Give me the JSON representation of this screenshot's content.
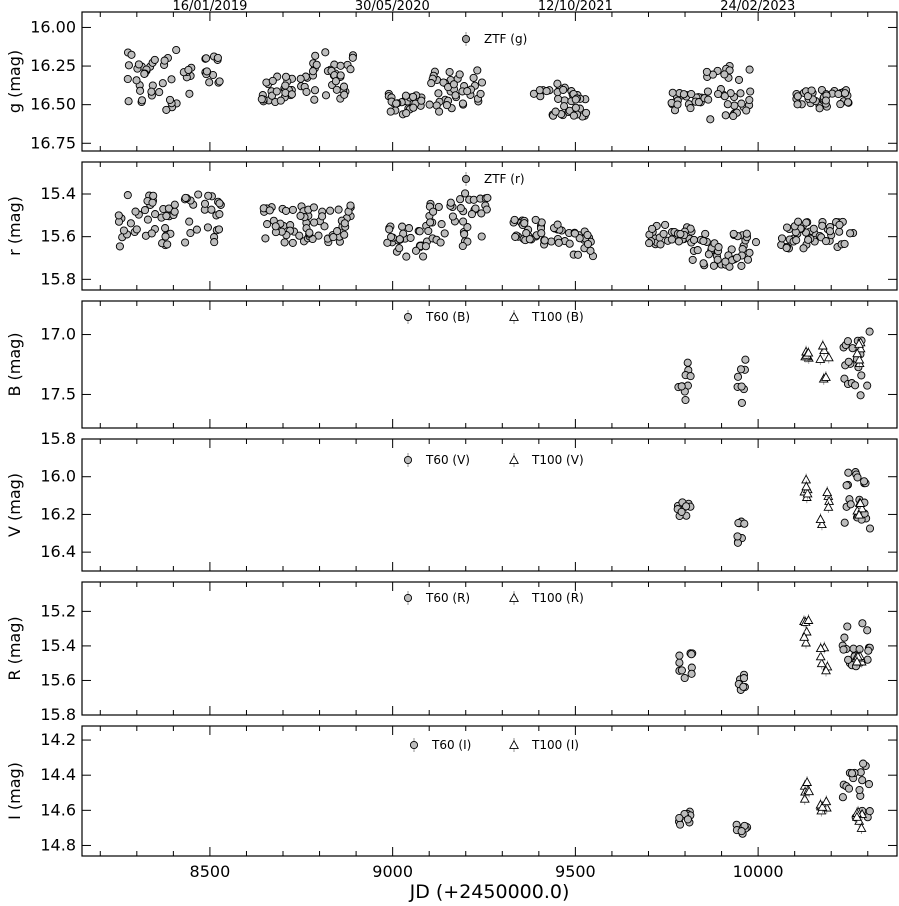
{
  "chart_data": {
    "type": "scatter",
    "xlabel": "JD (+2450000.0)",
    "x_ticks": [
      8500,
      9000,
      9500,
      10000
    ],
    "xlim": [
      8150,
      10380
    ],
    "top_axis": {
      "ticks": [
        {
          "jd": 8500,
          "label": "16/01/2019"
        },
        {
          "jd": 8999,
          "label": "30/05/2020"
        },
        {
          "jd": 9500,
          "label": "12/10/2021"
        },
        {
          "jd": 9999,
          "label": "24/02/2023"
        }
      ]
    },
    "panels": [
      {
        "id": "g",
        "ylabel": "g (mag)",
        "ylim": [
          15.9,
          16.8
        ],
        "inverted": true,
        "y_ticks": [
          "16.00",
          "16.25",
          "16.50",
          "16.75"
        ],
        "legend": [
          {
            "label": "ZTF (g)",
            "marker": "circle-dark"
          }
        ],
        "series": [
          {
            "name": "ZTF (g)",
            "marker": "circle",
            "color": "#bdbdbd",
            "edge": "#000000",
            "segments": [
              {
                "x": [
                  8270,
                  8410
                ],
                "y": [
                  16.05,
                  16.62
                ]
              },
              {
                "x": [
                  8420,
                  8450
                ],
                "y": [
                  16.22,
                  16.45
                ]
              },
              {
                "x": [
                  8480,
                  8530
                ],
                "y": [
                  16.12,
                  16.42
                ]
              },
              {
                "x": [
                  8640,
                  8770
                ],
                "y": [
                  16.28,
                  16.52
                ]
              },
              {
                "x": [
                  8770,
                  8800
                ],
                "y": [
                  16.08,
                  16.55
                ]
              },
              {
                "x": [
                  8800,
                  8900
                ],
                "y": [
                  16.1,
                  16.5
                ]
              },
              {
                "x": [
                  8980,
                  9090
                ],
                "y": [
                  16.4,
                  16.6
                ]
              },
              {
                "x": [
                  9090,
                  9250
                ],
                "y": [
                  16.22,
                  16.56
                ]
              },
              {
                "x": [
                  9380,
                  9530
                ],
                "y": [
                  16.3,
                  16.63
                ]
              },
              {
                "x": [
                  9760,
                  9850
                ],
                "y": [
                  16.4,
                  16.55
                ]
              },
              {
                "x": [
                  9850,
                  9990
                ],
                "y": [
                  16.15,
                  16.68
                ]
              },
              {
                "x": [
                  10100,
                  10250
                ],
                "y": [
                  16.38,
                  16.54
                ]
              }
            ]
          }
        ]
      },
      {
        "id": "r",
        "ylabel": "r (mag)",
        "ylim": [
          15.25,
          15.85
        ],
        "inverted": true,
        "y_ticks": [
          "15.4",
          "15.6",
          "15.8"
        ],
        "legend": [
          {
            "label": "ZTF (r)",
            "marker": "circle-dark"
          }
        ],
        "series": [
          {
            "name": "ZTF (r)",
            "marker": "circle",
            "color": "#bdbdbd",
            "edge": "#000000",
            "segments": [
              {
                "x": [
                  8250,
                  8410
                ],
                "y": [
                  15.35,
                  15.71
                ]
              },
              {
                "x": [
                  8430,
                  8530
                ],
                "y": [
                  15.35,
                  15.68
                ]
              },
              {
                "x": [
                  8640,
                  8770
                ],
                "y": [
                  15.42,
                  15.67
                ]
              },
              {
                "x": [
                  8770,
                  8890
                ],
                "y": [
                  15.4,
                  15.7
                ]
              },
              {
                "x": [
                  8980,
                  9100
                ],
                "y": [
                  15.52,
                  15.7
                ]
              },
              {
                "x": [
                  9100,
                  9260
                ],
                "y": [
                  15.34,
                  15.68
                ]
              },
              {
                "x": [
                  9330,
                  9480
                ],
                "y": [
                  15.49,
                  15.65
                ]
              },
              {
                "x": [
                  9480,
                  9550
                ],
                "y": [
                  15.55,
                  15.72
                ]
              },
              {
                "x": [
                  9700,
                  9820
                ],
                "y": [
                  15.52,
                  15.66
                ]
              },
              {
                "x": [
                  9820,
                  10000
                ],
                "y": [
                  15.55,
                  15.77
                ]
              },
              {
                "x": [
                  10060,
                  10100
                ],
                "y": [
                  15.52,
                  15.68
                ]
              },
              {
                "x": [
                  10100,
                  10260
                ],
                "y": [
                  15.5,
                  15.66
                ]
              }
            ]
          }
        ]
      },
      {
        "id": "B",
        "ylabel": "B (mag)",
        "ylim": [
          16.72,
          17.78
        ],
        "inverted": true,
        "y_ticks": [
          "17.0",
          "17.5"
        ],
        "legend": [
          {
            "label": "T60 (B)",
            "marker": "circle"
          },
          {
            "label": "T100 (B)",
            "marker": "triangle"
          }
        ],
        "series": [
          {
            "name": "T60 (B)",
            "marker": "circle",
            "color": "#bdbdbd",
            "edge": "#000000",
            "segments": [
              {
                "x": [
                  9780,
                  9820
                ],
                "y": [
                  17.08,
                  17.66
                ]
              },
              {
                "x": [
                  9940,
                  9970
                ],
                "y": [
                  17.1,
                  17.7
                ]
              },
              {
                "x": [
                  10230,
                  10310
                ],
                "y": [
                  16.85,
                  17.56
                ]
              }
            ]
          },
          {
            "name": "T100 (B)",
            "marker": "triangle",
            "color": "#ffffff",
            "edge": "#000000",
            "segments": [
              {
                "x": [
                  10125,
                  10140
                ],
                "y": [
                  17.1,
                  17.22
                ]
              },
              {
                "x": [
                  10170,
                  10195
                ],
                "y": [
                  17.0,
                  17.48
                ]
              },
              {
                "x": [
                  10270,
                  10285
                ],
                "y": [
                  17.02,
                  17.26
                ]
              }
            ]
          }
        ]
      },
      {
        "id": "V",
        "ylabel": "V (mag)",
        "ylim": [
          15.8,
          16.5
        ],
        "inverted": true,
        "y_ticks": [
          "15.8",
          "16.0",
          "16.2",
          "16.4"
        ],
        "legend": [
          {
            "label": "T60 (V)",
            "marker": "circle"
          },
          {
            "label": "T100 (V)",
            "marker": "triangle"
          }
        ],
        "series": [
          {
            "name": "T60 (V)",
            "marker": "circle",
            "color": "#bdbdbd",
            "edge": "#000000",
            "segments": [
              {
                "x": [
                  9780,
                  9820
                ],
                "y": [
                  16.11,
                  16.27
                ]
              },
              {
                "x": [
                  9940,
                  9970
                ],
                "y": [
                  16.21,
                  16.39
                ]
              },
              {
                "x": [
                  10230,
                  10310
                ],
                "y": [
                  15.91,
                  16.33
                ]
              }
            ]
          },
          {
            "name": "T100 (V)",
            "marker": "triangle",
            "color": "#ffffff",
            "edge": "#000000",
            "segments": [
              {
                "x": [
                  10125,
                  10140
                ],
                "y": [
                  15.9,
                  16.15
                ]
              },
              {
                "x": [
                  10170,
                  10195
                ],
                "y": [
                  16.04,
                  16.3
                ]
              },
              {
                "x": [
                  10270,
                  10285
                ],
                "y": [
                  16.1,
                  16.25
                ]
              }
            ]
          }
        ]
      },
      {
        "id": "R",
        "ylabel": "R (mag)",
        "ylim": [
          15.03,
          15.8
        ],
        "inverted": true,
        "y_ticks": [
          "15.2",
          "15.4",
          "15.6",
          "15.8"
        ],
        "legend": [
          {
            "label": "T60 (R)",
            "marker": "circle"
          },
          {
            "label": "T100 (R)",
            "marker": "triangle"
          }
        ],
        "series": [
          {
            "name": "T60 (R)",
            "marker": "circle",
            "color": "#bdbdbd",
            "edge": "#000000",
            "segments": [
              {
                "x": [
                  9780,
                  9820
                ],
                "y": [
                  15.4,
                  15.62
                ]
              },
              {
                "x": [
                  9940,
                  9970
                ],
                "y": [
                  15.51,
                  15.69
                ]
              },
              {
                "x": [
                  10230,
                  10310
                ],
                "y": [
                  15.2,
                  15.58
                ]
              }
            ]
          },
          {
            "name": "T100 (R)",
            "marker": "triangle",
            "color": "#ffffff",
            "edge": "#000000",
            "segments": [
              {
                "x": [
                  10125,
                  10140
                ],
                "y": [
                  15.13,
                  15.45
                ]
              },
              {
                "x": [
                  10170,
                  10195
                ],
                "y": [
                  15.37,
                  15.55
                ]
              },
              {
                "x": [
                  10270,
                  10285
                ],
                "y": [
                  15.44,
                  15.52
                ]
              }
            ]
          }
        ]
      },
      {
        "id": "I",
        "ylabel": "I (mag)",
        "ylim": [
          14.12,
          14.86
        ],
        "inverted": true,
        "y_ticks": [
          "14.2",
          "14.4",
          "14.6",
          "14.8"
        ],
        "legend": [
          {
            "label": "T60 (I)",
            "marker": "circle"
          },
          {
            "label": "T100 (I)",
            "marker": "triangle"
          }
        ],
        "series": [
          {
            "name": "T60 (I)",
            "marker": "circle",
            "color": "#bdbdbd",
            "edge": "#000000",
            "segments": [
              {
                "x": [
                  9780,
                  9820
                ],
                "y": [
                  14.58,
                  14.7
                ]
              },
              {
                "x": [
                  9940,
                  9970
                ],
                "y": [
                  14.66,
                  14.75
                ]
              },
              {
                "x": [
                  10230,
                  10310
                ],
                "y": [
                  14.24,
                  14.72
                ]
              }
            ]
          },
          {
            "name": "T100 (I)",
            "marker": "triangle",
            "color": "#ffffff",
            "edge": "#000000",
            "segments": [
              {
                "x": [
                  10125,
                  10140
                ],
                "y": [
                  14.36,
                  14.6
                ]
              },
              {
                "x": [
                  10170,
                  10195
                ],
                "y": [
                  14.52,
                  14.65
                ]
              },
              {
                "x": [
                  10270,
                  10285
                ],
                "y": [
                  14.58,
                  14.72
                ]
              }
            ]
          }
        ]
      }
    ]
  }
}
